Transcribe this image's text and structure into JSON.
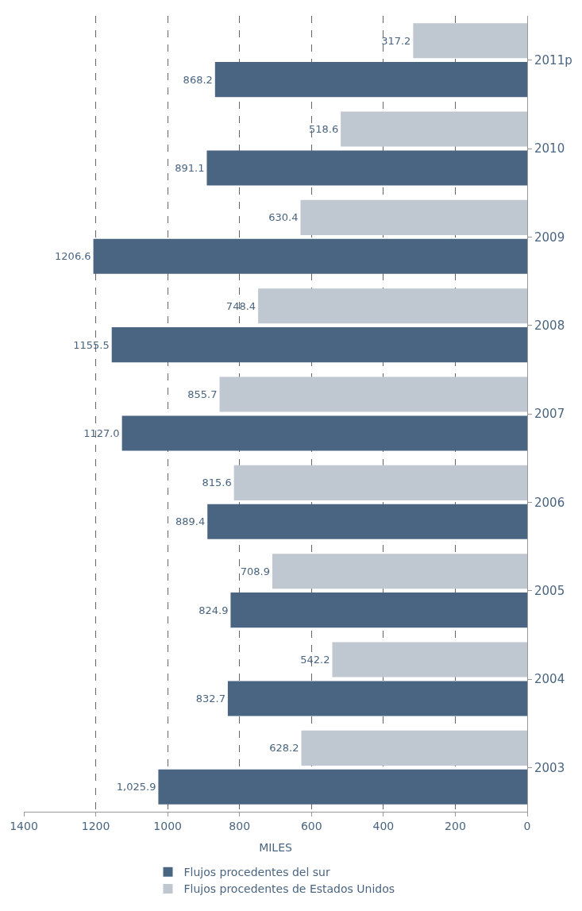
{
  "chart_data": {
    "type": "bar",
    "orientation": "horizontal",
    "xlabel": "MILES",
    "categories": [
      "2011p",
      "2010",
      "2009",
      "2008",
      "2007",
      "2006",
      "2005",
      "2004",
      "2003"
    ],
    "series": [
      {
        "name": "Flujos procedentes del sur",
        "color": "#4a6582",
        "values": [
          868.2,
          891.1,
          1206.6,
          1155.5,
          1127.0,
          889.4,
          824.9,
          832.7,
          1025.9
        ],
        "value_labels": [
          "868.2",
          "891.1",
          "1206.6",
          "1155.5",
          "1127.0",
          "889.4",
          "824.9",
          "832.7",
          "1,025.9"
        ]
      },
      {
        "name": "Flujos procedentes de Estados Unidos",
        "color": "#bfc8d1",
        "values": [
          317.2,
          518.6,
          630.4,
          748.4,
          855.7,
          815.6,
          708.9,
          542.2,
          628.2
        ],
        "value_labels": [
          "317.2",
          "518.6",
          "630.4",
          "748.4",
          "855.7",
          "815.6",
          "708.9",
          "542.2",
          "628.2"
        ]
      }
    ],
    "xlim": [
      1400,
      0
    ],
    "xticks": [
      0,
      200,
      400,
      600,
      800,
      1000,
      1200,
      1400
    ],
    "grid": "x",
    "legend": "bottom"
  }
}
